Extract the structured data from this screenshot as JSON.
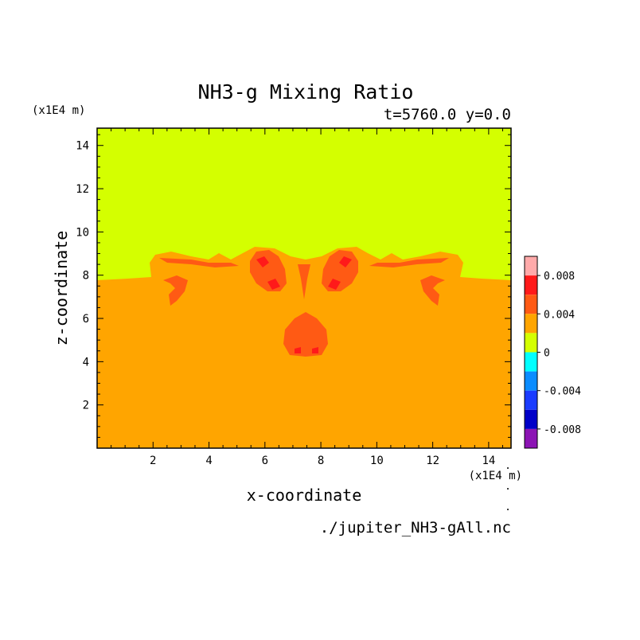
{
  "chart_data": {
    "type": "heatmap",
    "title": "NH3-g Mixing Ratio",
    "subtitle": "t=5760.0 y=0.0",
    "xlabel": "x-coordinate",
    "ylabel": "z-coordinate",
    "x_unit": "(x1E4 m)",
    "y_unit": "(x1E4 m)",
    "source": "./jupiter_NH3-gAll.nc",
    "xlim": [
      0,
      14.8
    ],
    "ylim": [
      0,
      14.8
    ],
    "x_ticks": [
      2,
      4,
      6,
      8,
      10,
      12,
      14
    ],
    "y_ticks": [
      2,
      4,
      6,
      8,
      10,
      12,
      14
    ],
    "colorbar": {
      "tick_labels": [
        "0.008",
        "0.004",
        "0",
        "-0.004",
        "-0.008"
      ],
      "tick_values": [
        0.008,
        0.004,
        0,
        -0.004,
        -0.008
      ],
      "bins": [
        {
          "min": 0.008,
          "max": 0.01,
          "color": "#ffaaaa"
        },
        {
          "min": 0.006,
          "max": 0.008,
          "color": "#ff1a1a"
        },
        {
          "min": 0.004,
          "max": 0.006,
          "color": "#ff5a14"
        },
        {
          "min": 0.002,
          "max": 0.004,
          "color": "#ffa500"
        },
        {
          "min": 0.0,
          "max": 0.002,
          "color": "#d4ff00"
        },
        {
          "min": -0.002,
          "max": 0.0,
          "color": "#00ffff"
        },
        {
          "min": -0.004,
          "max": -0.002,
          "color": "#0a8cff"
        },
        {
          "min": -0.006,
          "max": -0.004,
          "color": "#1a3cff"
        },
        {
          "min": -0.008,
          "max": -0.006,
          "color": "#0000c8"
        },
        {
          "min": -0.01,
          "max": -0.008,
          "color": "#8c14b4"
        }
      ]
    },
    "colors": {
      "lower": "#ffa500",
      "upper": "#d4ff00",
      "mid": "#ff5a14",
      "high": "#ff1a1a"
    }
  }
}
